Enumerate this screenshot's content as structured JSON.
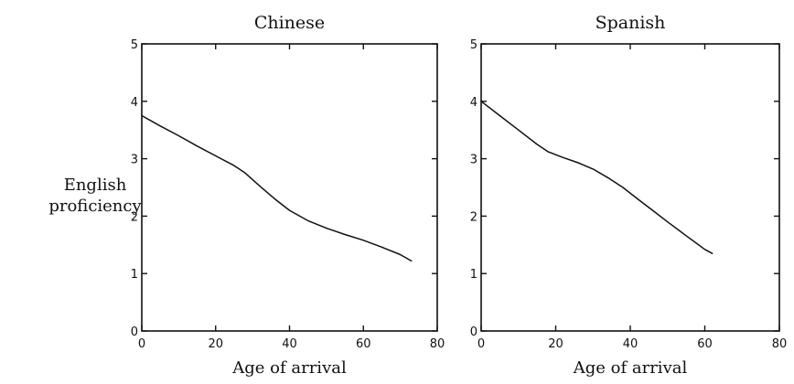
{
  "ylabel_lines": [
    "English",
    "proficiency"
  ],
  "chart_data": [
    {
      "type": "line",
      "title": "Chinese",
      "xlabel": "Age of arrival",
      "ylabel": "English proficiency",
      "xlim": [
        0,
        80
      ],
      "ylim": [
        0,
        5
      ],
      "xticks": [
        0,
        20,
        40,
        60,
        80
      ],
      "yticks": [
        0,
        1,
        2,
        3,
        4,
        5
      ],
      "grid": false,
      "x": [
        0,
        5,
        10,
        15,
        20,
        25,
        28,
        32,
        36,
        40,
        45,
        50,
        55,
        60,
        65,
        70,
        73
      ],
      "y": [
        3.75,
        3.57,
        3.4,
        3.22,
        3.05,
        2.88,
        2.75,
        2.52,
        2.3,
        2.1,
        1.92,
        1.79,
        1.68,
        1.58,
        1.46,
        1.33,
        1.22
      ]
    },
    {
      "type": "line",
      "title": "Spanish",
      "xlabel": "Age of arrival",
      "ylabel": "",
      "xlim": [
        0,
        80
      ],
      "ylim": [
        0,
        5
      ],
      "xticks": [
        0,
        20,
        40,
        60,
        80
      ],
      "yticks": [
        0,
        1,
        2,
        3,
        4,
        5
      ],
      "grid": false,
      "x": [
        0,
        5,
        10,
        15,
        18,
        22,
        26,
        30,
        34,
        38,
        42,
        46,
        50,
        55,
        60,
        62
      ],
      "y": [
        4.0,
        3.75,
        3.5,
        3.25,
        3.12,
        3.02,
        2.93,
        2.82,
        2.67,
        2.5,
        2.3,
        2.1,
        1.9,
        1.66,
        1.42,
        1.35
      ]
    }
  ]
}
